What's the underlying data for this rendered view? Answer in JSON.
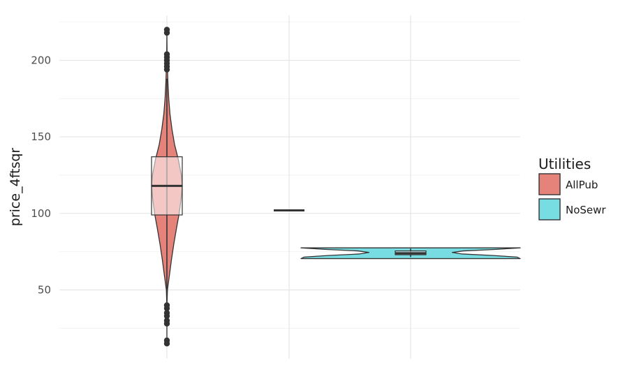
{
  "chart_data": {
    "type": "violin",
    "title": "",
    "xlabel": "",
    "ylabel": "price_4ftsqr",
    "ylim": [
      12,
      224
    ],
    "yticks": [
      50,
      100,
      150,
      200
    ],
    "grid": true,
    "legend": {
      "title": "Utilities",
      "position": "right",
      "entries": [
        {
          "label": "AllPub",
          "color": "#e5837a"
        },
        {
          "label": "NoSewr",
          "color": "#78dce3"
        }
      ]
    },
    "groups": [
      {
        "fill": "AllPub",
        "violin_profile": [
          [
            15,
            0.0
          ],
          [
            30,
            0.002
          ],
          [
            40,
            0.005
          ],
          [
            50,
            0.035
          ],
          [
            60,
            0.17
          ],
          [
            70,
            0.3
          ],
          [
            80,
            0.45
          ],
          [
            90,
            0.62
          ],
          [
            100,
            0.8
          ],
          [
            110,
            0.93
          ],
          [
            118,
            1.0
          ],
          [
            125,
            0.94
          ],
          [
            135,
            0.75
          ],
          [
            145,
            0.5
          ],
          [
            155,
            0.33
          ],
          [
            165,
            0.2
          ],
          [
            175,
            0.12
          ],
          [
            185,
            0.07
          ],
          [
            195,
            0.035
          ],
          [
            205,
            0.012
          ],
          [
            219,
            0.0
          ]
        ],
        "box": {
          "q1": 99,
          "median": 118,
          "q3": 137,
          "whisker_low": 48,
          "whisker_high": 188
        },
        "outliers": [
          15,
          17,
          28,
          30,
          33,
          35,
          38,
          40,
          194,
          196,
          198,
          200,
          202,
          204,
          218,
          220
        ]
      },
      {
        "fill": "AllPub",
        "violin_profile": [],
        "box": {
          "q1": 102,
          "median": 102,
          "q3": 102,
          "whisker_low": 102,
          "whisker_high": 102
        },
        "outliers": []
      },
      {
        "fill": "NoSewr",
        "violin_profile": [
          [
            70.5,
            1.0
          ],
          [
            71.5,
            0.97
          ],
          [
            72.5,
            0.75
          ],
          [
            73.5,
            0.47
          ],
          [
            74.5,
            0.38
          ],
          [
            75.5,
            0.48
          ],
          [
            76.5,
            0.78
          ],
          [
            77.5,
            1.0
          ]
        ],
        "box": {
          "q1": 73,
          "median": 74,
          "q3": 75.5,
          "whisker_low": 71.5,
          "whisker_high": 77
        },
        "outliers": []
      }
    ]
  }
}
